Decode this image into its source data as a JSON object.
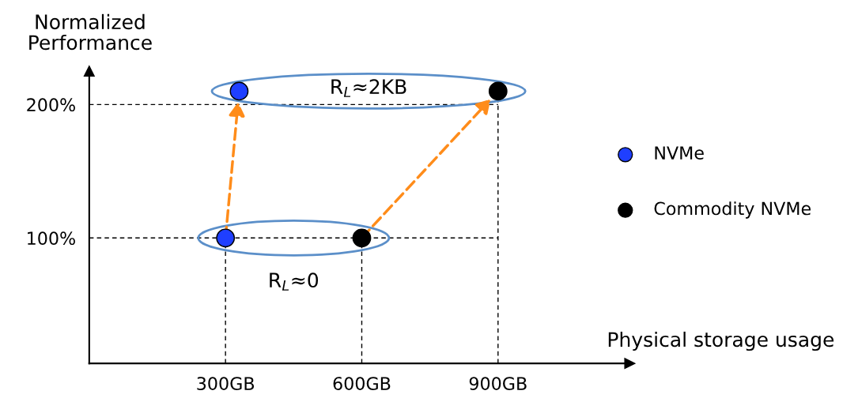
{
  "chart_data": {
    "type": "scatter",
    "xlabel": "Physical storage usage",
    "ylabel": "Normalized Performance",
    "xlim": [
      0,
      1190
    ],
    "ylim": [
      6,
      225
    ],
    "xticks": [
      {
        "value": 300,
        "label": "300GB"
      },
      {
        "value": 600,
        "label": "600GB"
      },
      {
        "value": 900,
        "label": "900GB"
      }
    ],
    "yticks": [
      {
        "value": 100,
        "label": "100%"
      },
      {
        "value": 200,
        "label": "200%"
      }
    ],
    "series": [
      {
        "name": "NVMe",
        "color": "#1f3fff",
        "x": [
          300,
          330
        ],
        "values": [
          100,
          210
        ]
      },
      {
        "name": "Commodity NVMe",
        "color": "#000000",
        "x": [
          600,
          900
        ],
        "values": [
          100,
          210
        ]
      }
    ],
    "ref_lines": [
      {
        "axis": "x",
        "value": 300,
        "color": "#000000",
        "line_style": "dashed"
      },
      {
        "axis": "x",
        "value": 600,
        "color": "#000000",
        "line_style": "dashed"
      },
      {
        "axis": "x",
        "value": 900,
        "color": "#000000",
        "line_style": "dashed"
      },
      {
        "axis": "y",
        "value": 100,
        "color": "#000000",
        "line_style": "dashed"
      },
      {
        "axis": "y",
        "value": 200,
        "color": "#000000",
        "line_style": "dashed"
      }
    ],
    "annotations": [
      "R$_{L}$≈2KB",
      "R$_{L}$≈0"
    ],
    "marker": "circle",
    "legend": "right",
    "grid": false
  }
}
